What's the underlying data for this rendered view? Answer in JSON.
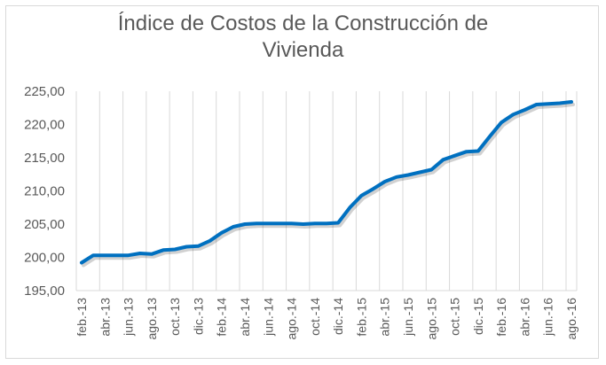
{
  "chart_data": {
    "type": "line",
    "title": "Índice de Costos de la Construcción de Vivienda",
    "title_lines": [
      "Índice de Costos de la Construcción de",
      "Vivienda"
    ],
    "xlabel": "",
    "ylabel": "",
    "ylim": [
      195,
      225
    ],
    "yticks": [
      "195,00",
      "200,00",
      "205,00",
      "210,00",
      "215,00",
      "220,00",
      "225,00"
    ],
    "grid": "vertical-only",
    "legend": "none",
    "line_color": "#0070c0",
    "x": [
      "feb.-13",
      "mar.-13",
      "abr.-13",
      "may.-13",
      "jun.-13",
      "jul.-13",
      "ago.-13",
      "sep.-13",
      "oct.-13",
      "nov.-13",
      "dic.-13",
      "ene.-14",
      "feb.-14",
      "mar.-14",
      "abr.-14",
      "may.-14",
      "jun.-14",
      "jul.-14",
      "ago.-14",
      "sep.-14",
      "oct.-14",
      "nov.-14",
      "dic.-14",
      "ene.-15",
      "feb.-15",
      "mar.-15",
      "abr.-15",
      "may.-15",
      "jun.-15",
      "jul.-15",
      "ago.-15",
      "sep.-15",
      "oct.-15",
      "nov.-15",
      "dic.-15",
      "ene.-16",
      "feb.-16",
      "mar.-16",
      "abr.-16",
      "may.-16",
      "jun.-16",
      "jul.-16",
      "ago.-16"
    ],
    "xtick_labels": [
      "feb.-13",
      "abr.-13",
      "jun.-13",
      "ago.-13",
      "oct.-13",
      "dic.-13",
      "feb.-14",
      "abr.-14",
      "jun.-14",
      "ago.-14",
      "oct.-14",
      "dic.-14",
      "feb.-15",
      "abr.-15",
      "jun.-15",
      "ago.-15",
      "oct.-15",
      "dic.-15",
      "feb.-16",
      "abr.-16",
      "jun.-16",
      "ago.-16"
    ],
    "series": [
      {
        "name": "Índice de Costos de la Construcción de Vivienda",
        "values": [
          199.2,
          200.3,
          200.3,
          200.3,
          200.3,
          200.6,
          200.5,
          201.1,
          201.2,
          201.6,
          201.7,
          202.5,
          203.7,
          204.6,
          205.0,
          205.1,
          205.1,
          205.1,
          205.1,
          205.0,
          205.1,
          205.1,
          205.2,
          207.5,
          209.3,
          210.3,
          211.4,
          212.1,
          212.4,
          212.8,
          213.2,
          214.7,
          215.3,
          215.9,
          216.0,
          218.2,
          220.3,
          221.5,
          222.2,
          223.0,
          223.1,
          223.2,
          223.4
        ]
      }
    ]
  }
}
